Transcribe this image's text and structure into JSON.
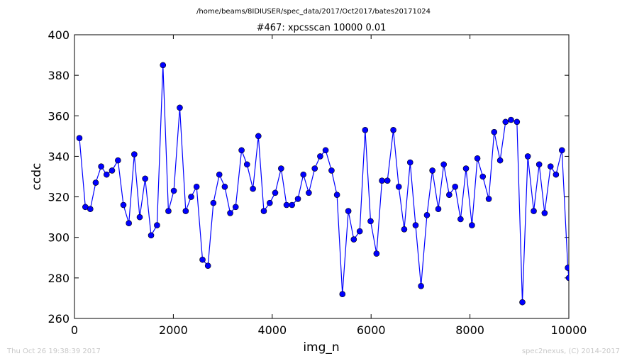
{
  "header": {
    "path": "/home/beams/8IDIUSER/spec_data/2017/Oct2017/bates20171024"
  },
  "footer": {
    "timestamp": "Thu Oct 26 19:38:39 2017",
    "credit": "spec2nexus, (C) 2014-2017"
  },
  "chart_data": {
    "type": "line",
    "title": "#467: xpcsscan 10000 0.01",
    "xlabel": "img_n",
    "ylabel": "ccdc",
    "xlim": [
      0,
      10000
    ],
    "ylim": [
      260,
      400
    ],
    "xticks": [
      "0",
      "2000",
      "4000",
      "6000",
      "8000",
      "10000"
    ],
    "yticks": [
      "260",
      "280",
      "300",
      "320",
      "340",
      "360",
      "380",
      "400"
    ],
    "grid": false,
    "line_color": "#0000ff",
    "marker": "circle",
    "series": [
      {
        "x": [
          100,
          220,
          320,
          430,
          540,
          650,
          760,
          880,
          990,
          1100,
          1210,
          1320,
          1430,
          1550,
          1670,
          1790,
          1900,
          2010,
          2130,
          2250,
          2360,
          2470,
          2590,
          2700,
          2810,
          2930,
          3040,
          3150,
          3260,
          3380,
          3490,
          3610,
          3720,
          3830,
          3950,
          4060,
          4180,
          4290,
          4400,
          4520,
          4630,
          4740,
          4860,
          4970,
          5080,
          5200,
          5310,
          5420,
          5540,
          5650,
          5770,
          5880,
          5990,
          6110,
          6220,
          6330,
          6450,
          6560,
          6670,
          6790,
          6900,
          7010,
          7130,
          7240,
          7360,
          7470,
          7580,
          7700,
          7810,
          7920,
          8040,
          8150,
          8260,
          8380,
          8490,
          8610,
          8720,
          8830,
          8950,
          9060,
          9170,
          9290,
          9400,
          9510,
          9630,
          9740,
          9860,
          9980,
          10000
        ],
        "values": [
          349,
          315,
          314,
          327,
          335,
          331,
          333,
          338,
          316,
          307,
          341,
          310,
          329,
          301,
          306,
          385,
          313,
          323,
          364,
          313,
          320,
          325,
          289,
          286,
          317,
          331,
          325,
          312,
          315,
          343,
          336,
          324,
          350,
          313,
          317,
          322,
          334,
          316,
          316,
          319,
          331,
          322,
          334,
          340,
          343,
          333,
          321,
          272,
          313,
          299,
          303,
          353,
          308,
          292,
          328,
          328,
          353,
          325,
          304,
          337,
          306,
          276,
          311,
          333,
          314,
          336,
          321,
          325,
          309,
          334,
          306,
          339,
          330,
          319,
          352,
          338,
          357,
          358,
          357,
          268,
          340,
          313,
          336,
          312,
          335,
          331,
          343,
          285,
          280
        ]
      }
    ]
  }
}
